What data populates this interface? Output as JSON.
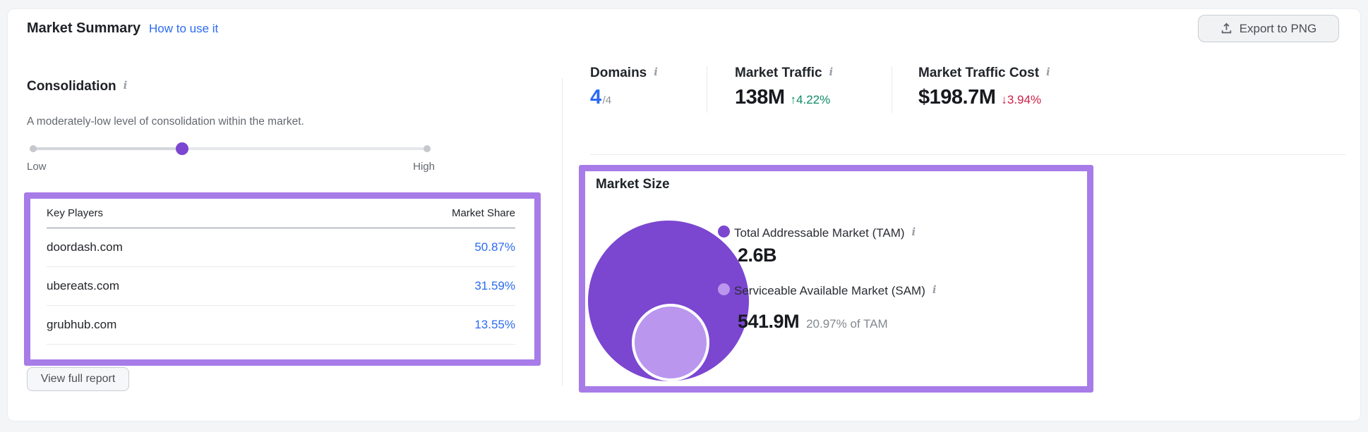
{
  "colors": {
    "accent-purple": "#a77ce8",
    "tam-purple": "#7b46d0",
    "sam-purple": "#bb96ef",
    "link-blue": "#2b6bf3",
    "positive-green": "#0e8a64",
    "negative-red": "#ce2047",
    "page-bg": "#f4f5f7"
  },
  "header": {
    "title": "Market Summary",
    "help_link": "How to use it",
    "export_button": "Export to PNG"
  },
  "consolidation": {
    "title": "Consolidation",
    "description": "A moderately-low level of consolidation within the market.",
    "slider": {
      "low": "Low",
      "high": "High",
      "position_pct": 38
    },
    "table": {
      "col_players": "Key Players",
      "col_share": "Market Share",
      "rows": [
        {
          "domain": "doordash.com",
          "share": "50.87%"
        },
        {
          "domain": "ubereats.com",
          "share": "31.59%"
        },
        {
          "domain": "grubhub.com",
          "share": "13.55%"
        }
      ]
    },
    "view_full_report": "View full report"
  },
  "stats": [
    {
      "label": "Domains",
      "value": "4",
      "suffix": "/4"
    },
    {
      "label": "Market Traffic",
      "value": "138M",
      "change": "↑4.22%",
      "trend": "up"
    },
    {
      "label": "Market Traffic Cost",
      "value": "$198.7M",
      "change": "↓3.94%",
      "trend": "down"
    }
  ],
  "market_size": {
    "title": "Market Size",
    "tam_label": "Total Addressable Market (TAM)",
    "tam_value": "2.6B",
    "sam_label": "Serviceable Available Market (SAM)",
    "sam_value": "541.9M",
    "sam_note": "20.97% of TAM"
  },
  "icons": {
    "info": "i"
  }
}
